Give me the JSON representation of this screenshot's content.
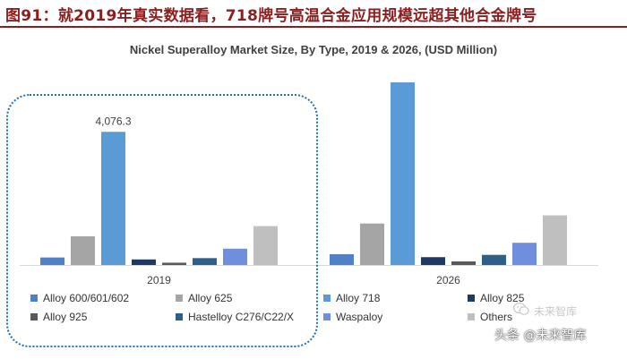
{
  "header": {
    "figure_title": "图91：就2019年真实数据看，718牌号高温合金应用规模远超其他合金牌号"
  },
  "colors": {
    "title_red": "#8b1e1e",
    "highlight_blue": "#1f6eb6"
  },
  "watermark": {
    "top_text": "未来智库",
    "text": "头条 @未来智库"
  },
  "chart_data": {
    "type": "bar",
    "title": "Nickel Superalloy Market Size, By Type, 2019 & 2026, (USD Million)",
    "xlabel": "",
    "ylabel": "",
    "categories": [
      "2019",
      "2026"
    ],
    "ylim": [
      0,
      5700
    ],
    "grid": false,
    "legend_position": "bottom",
    "series": [
      {
        "name": "Alloy 600/601/602",
        "color": "#4f81c7",
        "values": [
          230,
          330
        ]
      },
      {
        "name": "Alloy 625",
        "color": "#a5a5a5",
        "values": [
          880,
          1270
        ]
      },
      {
        "name": "Alloy 718",
        "color": "#5b9bd5",
        "values": [
          4076.3,
          5590
        ]
      },
      {
        "name": "Alloy 825",
        "color": "#1f3864",
        "values": [
          170,
          240
        ]
      },
      {
        "name": "Alloy 925",
        "color": "#595959",
        "values": [
          70,
          110
        ]
      },
      {
        "name": "Hastelloy C276/C22/X",
        "color": "#2e5f8a",
        "values": [
          210,
          310
        ]
      },
      {
        "name": "Waspaloy",
        "color": "#6f8fdc",
        "values": [
          500,
          680
        ]
      },
      {
        "name": "Others",
        "color": "#bfbfbf",
        "values": [
          1190,
          1520
        ]
      }
    ],
    "data_labels": [
      {
        "series": "Alloy 718",
        "category": "2019",
        "text": "4,076.3"
      }
    ],
    "highlight": {
      "category": "2019"
    }
  }
}
